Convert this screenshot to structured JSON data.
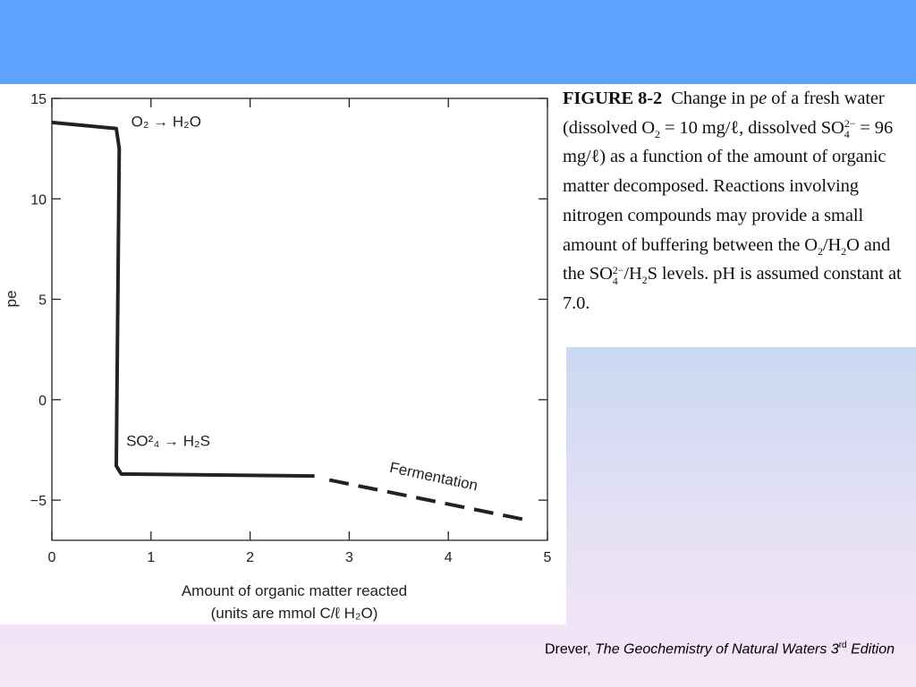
{
  "figure": {
    "label": "FIGURE 8-2",
    "caption": {
      "t1": "Change in p",
      "t1_italic": "e",
      "t2": " of a fresh water (dissolved O",
      "t2_sub": "2",
      "t3": " = 10 mg/ℓ, dissolved SO",
      "t3_sup": "2−",
      "t3_sub": "4",
      "t4": " = 96 mg/ℓ) as a function of the amount of organic matter decomposed. Reactions involving nitrogen compounds may provide a small amount of buffering between the O",
      "t4_sub": "2",
      "t5": "/H",
      "t5_sub": "2",
      "t6": "O and the SO",
      "t6_sup": "2−",
      "t6_sub": "4",
      "t7": "/H",
      "t7_sub": "2",
      "t8": "S levels. pH is assumed constant at 7.0."
    }
  },
  "credit": {
    "author": "Drever, ",
    "title": "The Geochemistry of Natural Waters 3",
    "title_sup": "rd",
    "edition": " Edition"
  },
  "colors": {
    "top_band": "#5fa2fe",
    "line": "#222222"
  },
  "chart_data": {
    "type": "line",
    "ylabel": "pe",
    "xlabel": "Amount of organic matter reacted",
    "xlabel_line2": "(units are mmol C/ℓ H₂O)",
    "xlim": [
      0,
      5
    ],
    "ylim": [
      -7,
      15
    ],
    "x_ticks": [
      0,
      1,
      2,
      3,
      4,
      5
    ],
    "y_ticks": [
      15,
      10,
      5,
      0,
      -5
    ],
    "y_tick_labels": [
      "15",
      "10",
      "5",
      "0",
      "−5"
    ],
    "series": [
      {
        "style": "solid",
        "points": [
          [
            0,
            13.8
          ],
          [
            0.65,
            13.5
          ],
          [
            0.68,
            12.5
          ],
          [
            0.65,
            -3.3
          ],
          [
            0.7,
            -3.7
          ],
          [
            2.65,
            -3.8
          ]
        ]
      },
      {
        "style": "dashed",
        "points": [
          [
            2.8,
            -4.0
          ],
          [
            4.8,
            -6.0
          ]
        ]
      }
    ],
    "annotations": [
      {
        "id": "o2",
        "text": "O₂ → H₂O",
        "x": 0.8,
        "y": 13.6
      },
      {
        "id": "so4",
        "text": "SO²₄ → H₂S",
        "x": 0.75,
        "y": -2.3
      },
      {
        "id": "ferm",
        "text": "Fermentation",
        "x": 3.4,
        "y": -3.6
      }
    ]
  }
}
